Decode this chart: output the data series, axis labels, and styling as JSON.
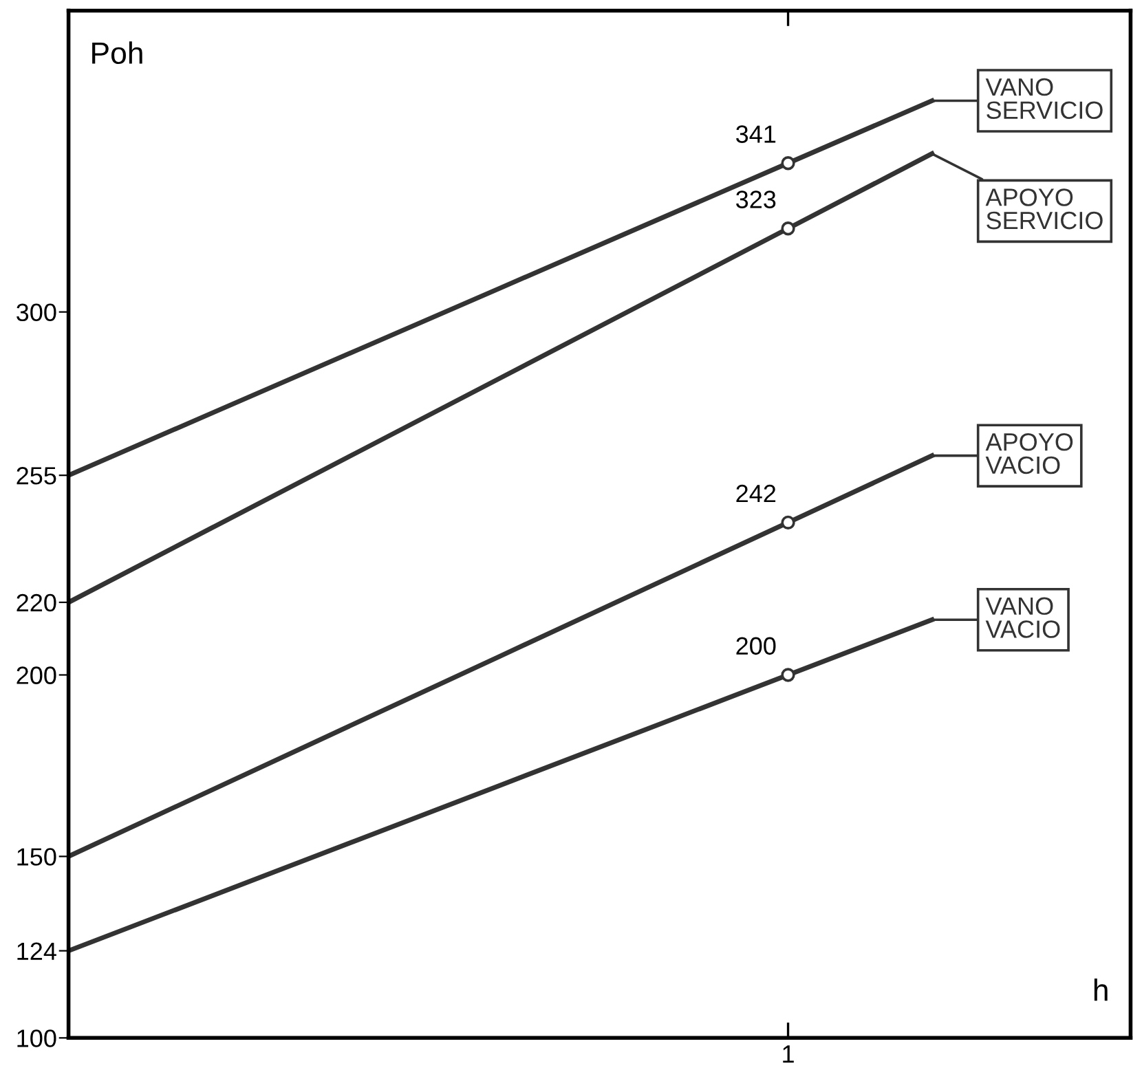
{
  "chart_data": {
    "type": "line",
    "ylabel": "Poh",
    "xlabel": "h",
    "categories": [
      null,
      null,
      null,
      null,
      null,
      "1",
      null
    ],
    "ylim": [
      100,
      383
    ],
    "yticks": [
      100,
      124,
      150,
      200,
      220,
      255,
      300
    ],
    "legend": "right",
    "grid": false,
    "series": [
      {
        "name": "VANO\nSERVICIO",
        "color": "#333333",
        "values": [
          255,
          272.2,
          289.4,
          306.6,
          323.8,
          341,
          358.2
        ],
        "value_labels": [
          null,
          null,
          null,
          null,
          null,
          "341",
          null
        ]
      },
      {
        "name": "APOYO\nSERVICIO",
        "color": "#333333",
        "values": [
          220,
          240.6,
          261.2,
          281.8,
          302.4,
          323,
          343.6
        ],
        "value_labels": [
          null,
          null,
          null,
          null,
          null,
          "323",
          null
        ]
      },
      {
        "name": "APOYO\nVACIO",
        "color": "#333333",
        "values": [
          150,
          168.4,
          186.8,
          205.2,
          223.6,
          242,
          260.4
        ],
        "value_labels": [
          null,
          null,
          null,
          null,
          null,
          "242",
          null
        ]
      },
      {
        "name": "VANO\nVACIO",
        "color": "#333333",
        "values": [
          124,
          139.2,
          154.4,
          169.6,
          184.8,
          200,
          215.2
        ],
        "value_labels": [
          null,
          null,
          null,
          null,
          null,
          "200",
          null
        ]
      }
    ]
  }
}
